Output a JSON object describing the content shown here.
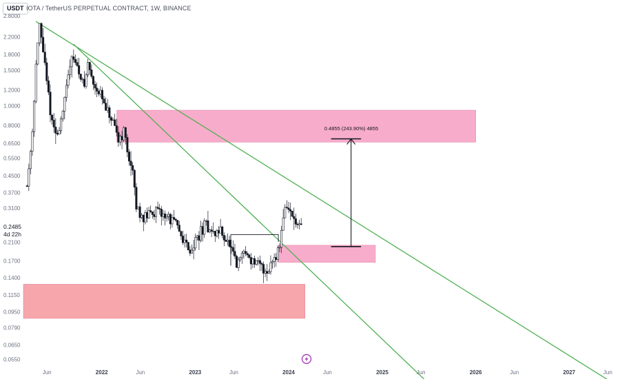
{
  "header": {
    "currency_badge": "USDT",
    "symbol": "IOTA / TetherUS PERPETUAL CONTRACT, 1W, BINANCE"
  },
  "price_axis": {
    "current_price": "0.2485",
    "countdown": "4d 22h"
  },
  "measure_label": "0.4855 (243.90%) 4855",
  "colors": {
    "candle": "#131722",
    "trendline": "#4caf50",
    "zone_pink": "#f8a8c8",
    "zone_red": "#f7a1a7",
    "flash_icon": "#9c27b0"
  },
  "icons": {
    "replay": "lightning-icon"
  },
  "chart_data": {
    "type": "candlestick",
    "y_scale": "log",
    "ylim": [
      0.0515,
      3.0
    ],
    "xlim": [
      "2021-03-01",
      "2027-08-01"
    ],
    "y_ticks": [
      "2.8000",
      "2.2000",
      "1.8000",
      "1.5000",
      "1.2000",
      "1.0000",
      "0.8000",
      "0.6500",
      "0.5500",
      "0.4500",
      "0.3700",
      "0.3100",
      "0.2100",
      "0.1700",
      "0.1400",
      "0.1150",
      "0.0950",
      "0.0790",
      "0.0650",
      "0.0550"
    ],
    "x_ticks": [
      {
        "label": "Jun",
        "date": "2021-06-01",
        "year": false
      },
      {
        "label": "2022",
        "date": "2022-01-01",
        "year": true
      },
      {
        "label": "Jun",
        "date": "2022-06-01",
        "year": false
      },
      {
        "label": "2023",
        "date": "2023-01-01",
        "year": true
      },
      {
        "label": "Jun",
        "date": "2023-06-01",
        "year": false
      },
      {
        "label": "2024",
        "date": "2024-01-01",
        "year": true
      },
      {
        "label": "Jun",
        "date": "2024-06-01",
        "year": false
      },
      {
        "label": "2025",
        "date": "2025-01-01",
        "year": true
      },
      {
        "label": "Jun",
        "date": "2025-06-01",
        "year": false
      },
      {
        "label": "2026",
        "date": "2026-01-01",
        "year": true
      },
      {
        "label": "Jun",
        "date": "2026-06-01",
        "year": false
      },
      {
        "label": "2027",
        "date": "2027-01-01",
        "year": true
      },
      {
        "label": "Jun",
        "date": "2027-06-01",
        "year": false
      }
    ],
    "price_path": [
      [
        "2021-03-15",
        0.4
      ],
      [
        "2021-04-05",
        0.75
      ],
      [
        "2021-04-19",
        1.6
      ],
      [
        "2021-05-03",
        2.5
      ],
      [
        "2021-05-17",
        1.9
      ],
      [
        "2021-05-31",
        1.3
      ],
      [
        "2021-06-21",
        0.82
      ],
      [
        "2021-07-12",
        0.7
      ],
      [
        "2021-08-09",
        1.05
      ],
      [
        "2021-09-06",
        1.85
      ],
      [
        "2021-09-27",
        1.55
      ],
      [
        "2021-10-25",
        1.25
      ],
      [
        "2021-11-08",
        1.62
      ],
      [
        "2021-11-29",
        1.3
      ],
      [
        "2021-12-27",
        1.15
      ],
      [
        "2022-01-17",
        0.95
      ],
      [
        "2022-02-07",
        0.85
      ],
      [
        "2022-03-07",
        0.68
      ],
      [
        "2022-03-28",
        0.75
      ],
      [
        "2022-04-11",
        0.6
      ],
      [
        "2022-05-02",
        0.46
      ],
      [
        "2022-05-16",
        0.31
      ],
      [
        "2022-06-13",
        0.28
      ],
      [
        "2022-07-25",
        0.3
      ],
      [
        "2022-08-22",
        0.29
      ],
      [
        "2022-09-19",
        0.28
      ],
      [
        "2022-10-17",
        0.26
      ],
      [
        "2022-11-14",
        0.22
      ],
      [
        "2022-12-12",
        0.19
      ],
      [
        "2023-01-16",
        0.23
      ],
      [
        "2023-02-13",
        0.26
      ],
      [
        "2023-03-13",
        0.23
      ],
      [
        "2023-04-10",
        0.24
      ],
      [
        "2023-05-15",
        0.2
      ],
      [
        "2023-06-12",
        0.16
      ],
      [
        "2023-07-10",
        0.19
      ],
      [
        "2023-08-14",
        0.17
      ],
      [
        "2023-09-11",
        0.16
      ],
      [
        "2023-10-09",
        0.15
      ],
      [
        "2023-11-06",
        0.18
      ],
      [
        "2023-11-27",
        0.2
      ],
      [
        "2023-12-11",
        0.29
      ],
      [
        "2023-12-25",
        0.32
      ],
      [
        "2024-01-15",
        0.28
      ],
      [
        "2024-02-05",
        0.25
      ],
      [
        "2024-02-19",
        0.2485
      ]
    ],
    "trendlines": [
      {
        "x1": "2021-04-19",
        "y1": 2.62,
        "x2": "2027-06-15",
        "y2": 0.0425
      },
      {
        "x1": "2021-09-13",
        "y1": 2.02,
        "x2": "2025-06-25",
        "y2": 0.0425
      }
    ],
    "zones": [
      {
        "name": "upper-supply-zone",
        "x1": "2022-03-01",
        "x2": "2026-01-01",
        "y_top": 0.95,
        "y_bottom": 0.66,
        "color": "zone_pink"
      },
      {
        "name": "entry-zone",
        "x1": "2023-11-20",
        "x2": "2024-12-05",
        "y_top": 0.203,
        "y_bottom": 0.167,
        "color": "zone_pink"
      },
      {
        "name": "lower-demand-zone",
        "x1": "2021-03-01",
        "x2": "2024-03-05",
        "y_top": 0.13,
        "y_bottom": 0.088,
        "color": "zone_red"
      }
    ],
    "breakout_box": {
      "x1": "2023-05-20",
      "x2": "2023-11-22",
      "y": 0.229
    },
    "measure": {
      "x": "2024-09-01",
      "x1": "2024-06-15",
      "x2": "2024-10-10",
      "y_from": 0.2,
      "y_to": 0.685
    }
  }
}
